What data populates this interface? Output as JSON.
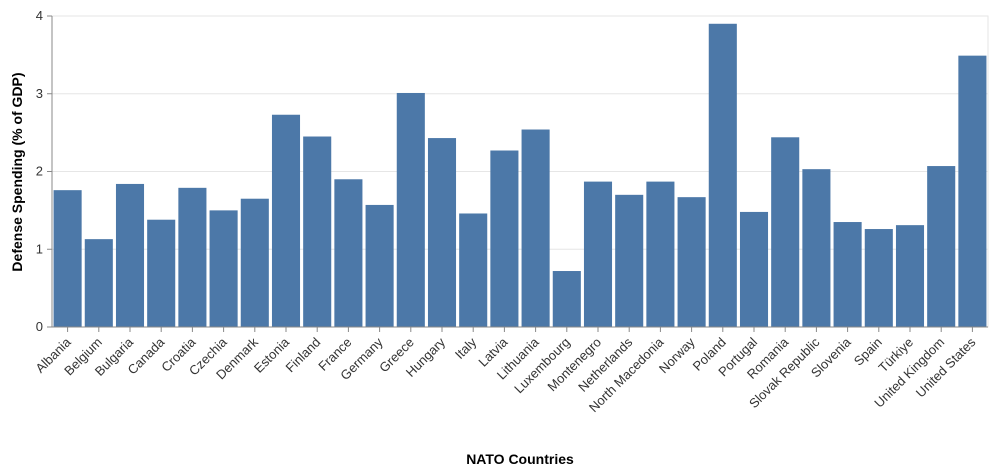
{
  "chart_data": {
    "type": "bar",
    "xlabel": "NATO Countries",
    "ylabel": "Defense Spending (% of GDP)",
    "ylim": [
      0,
      4
    ],
    "yticks": [
      "0",
      "1",
      "2",
      "3",
      "4"
    ],
    "grid": true,
    "legend": "none",
    "colors": {
      "bar": "#4c78a8",
      "grid": "#e6e6e6",
      "axis": "#888888"
    },
    "categories": [
      "Albania",
      "Belgium",
      "Bulgaria",
      "Canada",
      "Croatia",
      "Czechia",
      "Denmark",
      "Estonia",
      "Finland",
      "France",
      "Germany",
      "Greece",
      "Hungary",
      "Italy",
      "Latvia",
      "Lithuania",
      "Luxembourg",
      "Montenegro",
      "Netherlands",
      "North Macedonia",
      "Norway",
      "Poland",
      "Portugal",
      "Romania",
      "Slovak Republic",
      "Slovenia",
      "Spain",
      "Türkiye",
      "United Kingdom",
      "United States"
    ],
    "values": [
      1.76,
      1.13,
      1.84,
      1.38,
      1.79,
      1.5,
      1.65,
      2.73,
      2.45,
      1.9,
      1.57,
      3.01,
      2.43,
      1.46,
      2.27,
      2.54,
      0.72,
      1.87,
      1.7,
      1.87,
      1.67,
      3.9,
      1.48,
      2.44,
      2.03,
      1.35,
      1.26,
      1.31,
      2.07,
      3.49
    ]
  }
}
